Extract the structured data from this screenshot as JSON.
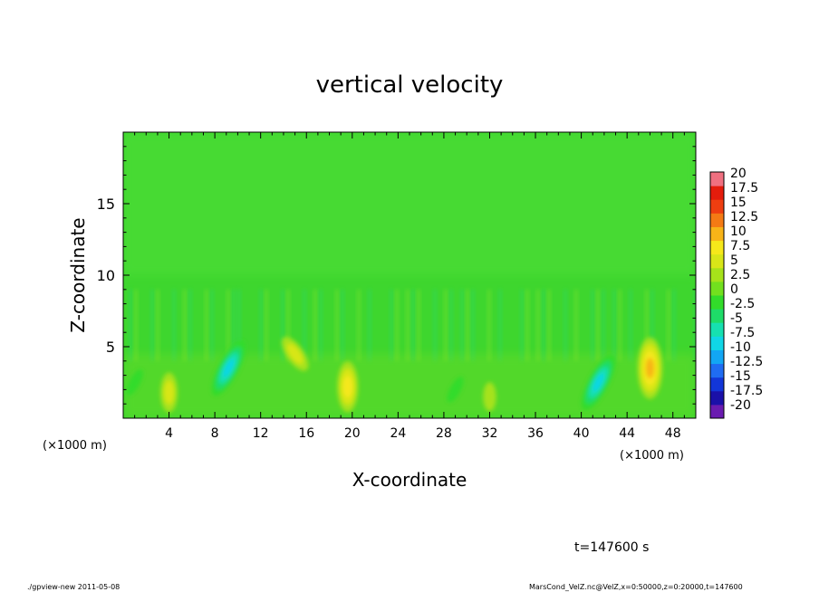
{
  "chart_data": {
    "type": "heatmap",
    "title": "vertical velocity",
    "xlabel": "X-coordinate",
    "ylabel": "Z-coordinate",
    "x_unit_left": "(×1000 m)",
    "x_unit_right": "(×1000 m)",
    "xlim": [
      0,
      50
    ],
    "ylim": [
      0,
      20
    ],
    "x_ticks": [
      4,
      8,
      12,
      16,
      20,
      24,
      28,
      32,
      36,
      40,
      44,
      48
    ],
    "y_ticks": [
      5,
      10,
      15
    ],
    "colorbar": {
      "levels": [
        -20,
        -17.5,
        -15,
        -12.5,
        -10,
        -7.5,
        -5,
        -2.5,
        0,
        2.5,
        5,
        7.5,
        10,
        12.5,
        15,
        17.5,
        20
      ],
      "labels": [
        "20",
        "17.5",
        "15",
        "12.5",
        "10",
        "7.5",
        "5",
        "2.5",
        "0",
        "-2.5",
        "-5",
        "-7.5",
        "-10",
        "-12.5",
        "-15",
        "-17.5",
        "-20"
      ],
      "colors": [
        "#6a1bb0",
        "#1a10a8",
        "#1236d8",
        "#1f6cf2",
        "#12a6f4",
        "#10d6e6",
        "#16e0b0",
        "#1edc68",
        "#32dc2a",
        "#72e01e",
        "#a6e21a",
        "#d8e618",
        "#f6e81a",
        "#f8b418",
        "#f47a14",
        "#ee3e10",
        "#e41c0c",
        "#f07080"
      ]
    },
    "features": [
      {
        "x": 46,
        "z": 3.5,
        "w": 12,
        "kind": "updraft"
      },
      {
        "x": 19.6,
        "z": 2.2,
        "w": 9,
        "kind": "updraft"
      },
      {
        "x": 4,
        "z": 1.8,
        "w": 6,
        "kind": "updraft"
      },
      {
        "x": 15,
        "z": 4.5,
        "w": 6,
        "kind": "updraft"
      },
      {
        "x": 32,
        "z": 1.5,
        "w": 4,
        "kind": "updraft"
      },
      {
        "x": 9.2,
        "z": 3.5,
        "w": -10,
        "kind": "downdraft"
      },
      {
        "x": 41.5,
        "z": 2.5,
        "w": -10,
        "kind": "downdraft"
      },
      {
        "x": 1,
        "z": 2.5,
        "w": -4,
        "kind": "downdraft"
      },
      {
        "x": 29,
        "z": 2.0,
        "w": -4,
        "kind": "downdraft"
      }
    ]
  },
  "annotations": {
    "time": "t=147600 s",
    "footer_left": "./gpview-new   2011-05-08",
    "footer_right": "MarsCond_VelZ.nc@VelZ,x=0:50000,z=0:20000,t=147600"
  }
}
